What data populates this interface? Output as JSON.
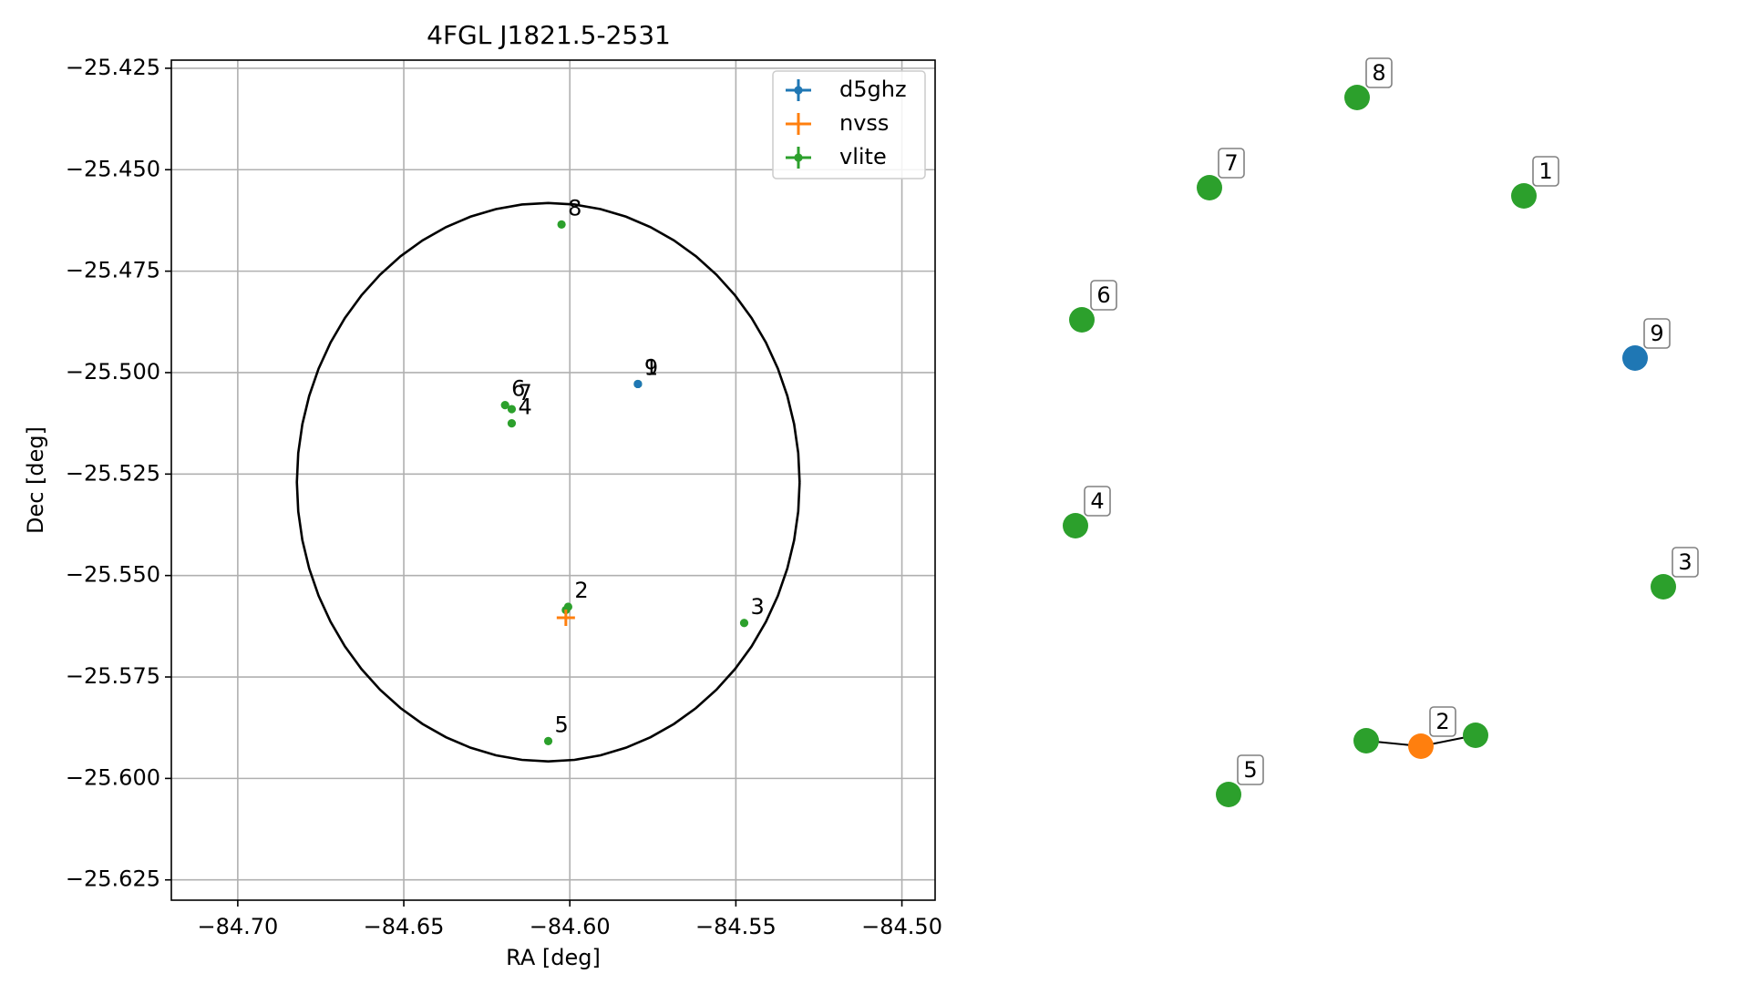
{
  "chart_data": [
    {
      "type": "scatter",
      "title": "4FGL J1821.5-2531",
      "xlabel": "RA [deg]",
      "ylabel": "Dec [deg]",
      "xlim": [
        -84.72,
        -84.49
      ],
      "ylim": [
        -25.63,
        -25.423
      ],
      "grid": true,
      "legend_position": "top-right",
      "xticks": [
        -84.7,
        -84.65,
        -84.6,
        -84.55,
        -84.5
      ],
      "xtick_labels": [
        "−84.70",
        "−84.65",
        "−84.60",
        "−84.55",
        "−84.50"
      ],
      "yticks": [
        -25.425,
        -25.45,
        -25.475,
        -25.5,
        -25.525,
        -25.55,
        -25.575,
        -25.6,
        -25.625
      ],
      "ytick_labels": [
        "−25.425",
        "−25.450",
        "−25.475",
        "−25.500",
        "−25.525",
        "−25.550",
        "−25.575",
        "−25.600",
        "−25.625"
      ],
      "ellipse": {
        "center_x": -84.6065,
        "center_y": -25.527,
        "half_width_x": 0.0757,
        "half_height_y": 0.0688,
        "color": "#000000"
      },
      "series": [
        {
          "name": "d5ghz",
          "color": "#1f77b4",
          "points": [
            {
              "x": -84.5795,
              "y": -25.5028,
              "label": "9"
            }
          ]
        },
        {
          "name": "nvss",
          "color": "#ff7f0e",
          "points": [
            {
              "x": -84.6012,
              "y": -25.5604,
              "label": ""
            }
          ]
        },
        {
          "name": "vlite",
          "color": "#2ca02c",
          "points": [
            {
              "x": -84.5795,
              "y": -25.5028,
              "label": "1"
            },
            {
              "x": -84.6005,
              "y": -25.5577,
              "label": "2"
            },
            {
              "x": -84.5475,
              "y": -25.5617,
              "label": "3"
            },
            {
              "x": -84.6175,
              "y": -25.5125,
              "label": "4"
            },
            {
              "x": -84.6065,
              "y": -25.5908,
              "label": "5"
            },
            {
              "x": -84.6195,
              "y": -25.508,
              "label": "6"
            },
            {
              "x": -84.6175,
              "y": -25.509,
              "label": "7"
            },
            {
              "x": -84.6025,
              "y": -25.4635,
              "label": "8"
            },
            {
              "x": -84.6012,
              "y": -25.5585,
              "label": ""
            }
          ]
        }
      ]
    },
    {
      "type": "network",
      "nodes": [
        {
          "id": "1",
          "label": "1",
          "color": "#2ca02c"
        },
        {
          "id": "2",
          "label": "2",
          "color": "#ff7f0e"
        },
        {
          "id": "2a",
          "label": "",
          "color": "#2ca02c"
        },
        {
          "id": "2b",
          "label": "",
          "color": "#2ca02c"
        },
        {
          "id": "3",
          "label": "3",
          "color": "#2ca02c"
        },
        {
          "id": "4",
          "label": "4",
          "color": "#2ca02c"
        },
        {
          "id": "5",
          "label": "5",
          "color": "#2ca02c"
        },
        {
          "id": "6",
          "label": "6",
          "color": "#2ca02c"
        },
        {
          "id": "7",
          "label": "7",
          "color": "#2ca02c"
        },
        {
          "id": "8",
          "label": "8",
          "color": "#2ca02c"
        },
        {
          "id": "9",
          "label": "9",
          "color": "#1f77b4"
        }
      ],
      "edges": [
        [
          "2a",
          "2"
        ],
        [
          "2",
          "2b"
        ]
      ]
    }
  ]
}
